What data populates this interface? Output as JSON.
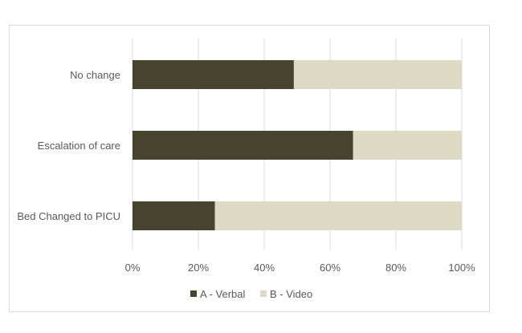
{
  "chart_data": {
    "type": "bar",
    "orientation": "horizontal",
    "stacked": "percent",
    "categories": [
      "No change",
      "Escalation of care",
      "Bed Changed to PICU"
    ],
    "series": [
      {
        "name": "A - Verbal",
        "values": [
          49,
          67,
          25
        ],
        "color": "#48432f"
      },
      {
        "name": "B - Video",
        "values": [
          51,
          33,
          75
        ],
        "color": "#dcd9c4"
      }
    ],
    "xlim": [
      0,
      100
    ],
    "x_ticks": [
      "0%",
      "20%",
      "40%",
      "60%",
      "80%",
      "100%"
    ],
    "grid": true,
    "legend_position": "bottom"
  }
}
